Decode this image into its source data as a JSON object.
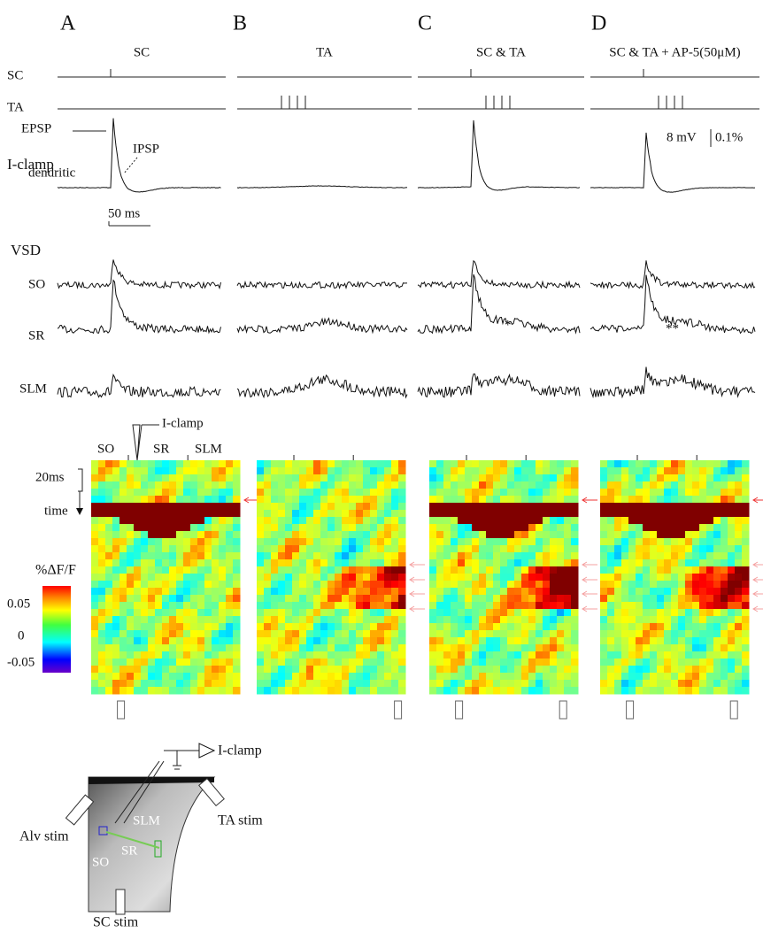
{
  "panels": [
    {
      "letter": "A",
      "title": "SC"
    },
    {
      "letter": "B",
      "title": "TA"
    },
    {
      "letter": "C",
      "title": "SC & TA"
    },
    {
      "letter": "D",
      "title": "SC & TA + AP-5(50μM)"
    }
  ],
  "stim_rows": [
    "SC",
    "TA"
  ],
  "iclamp": {
    "label": "I-clamp",
    "epsp": "EPSP",
    "ipsp": "IPSP",
    "site": "dendritic",
    "time_scale": "50 ms",
    "v_scale": "8 mV",
    "f_scale": "0.1%"
  },
  "vsd": {
    "label": "VSD",
    "layers": [
      "SO",
      "SR",
      "SLM"
    ],
    "marks": [
      "*",
      "**"
    ]
  },
  "heatmap": {
    "layers": [
      "SO",
      "SR",
      "SLM"
    ],
    "electrode": "I-clamp",
    "time_scale": "20ms",
    "time": "time",
    "colorbar": {
      "title": "%ΔF/F",
      "ticks": [
        "0.05",
        "0",
        "-0.05"
      ]
    }
  },
  "slice": {
    "electrode": "I-clamp",
    "stims": [
      "Alv stim",
      "TA stim",
      "SC stim"
    ],
    "layers": [
      "SLM",
      "SR",
      "SO"
    ]
  }
}
